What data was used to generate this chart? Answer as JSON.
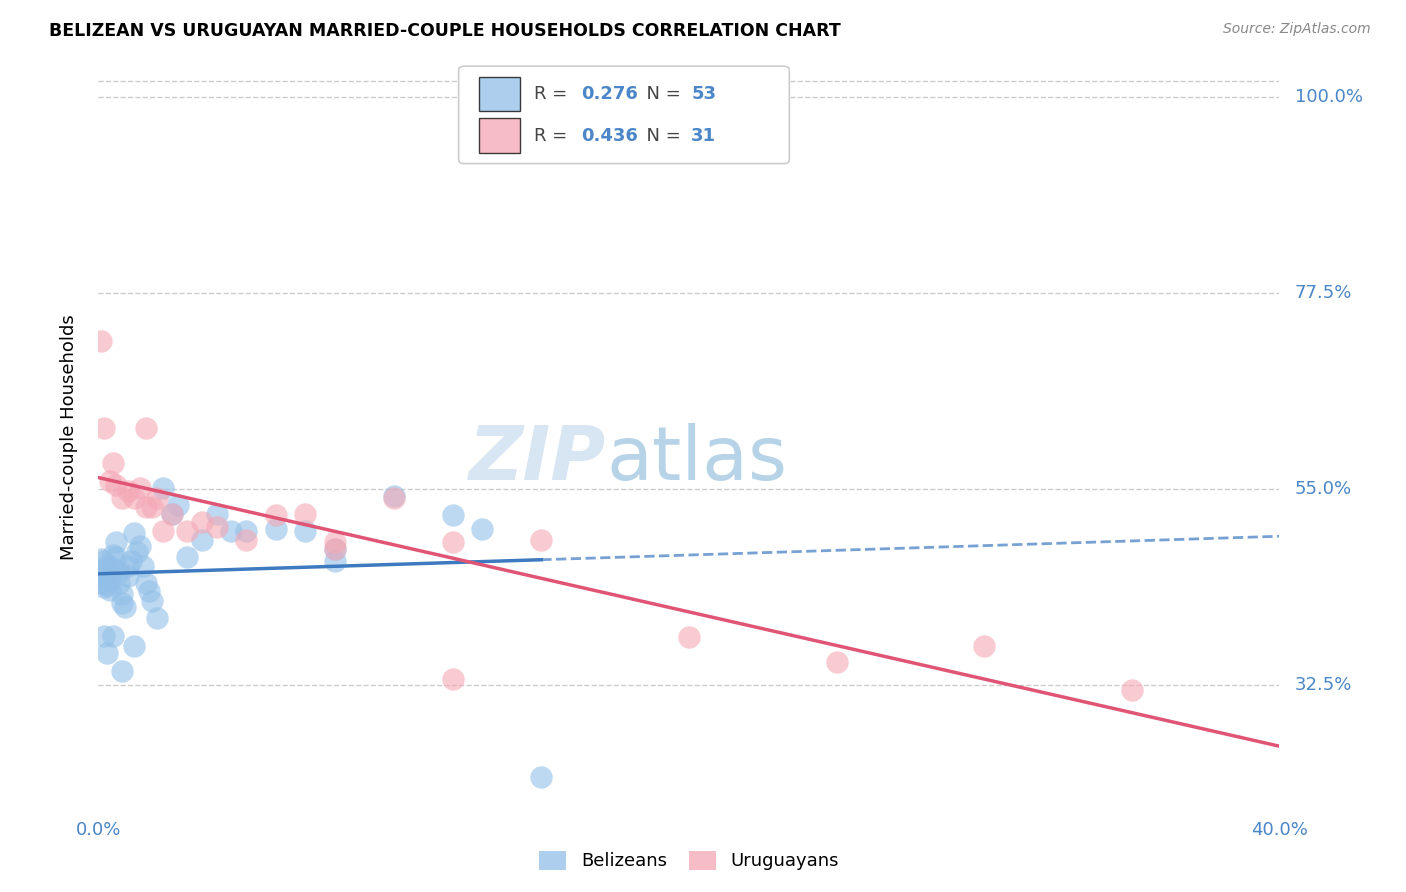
{
  "title": "BELIZEAN VS URUGUAYAN MARRIED-COUPLE HOUSEHOLDS CORRELATION CHART",
  "source": "Source: ZipAtlas.com",
  "ylabel": "Married-couple Households",
  "yticks_pct": [
    32.5,
    55.0,
    77.5,
    100.0
  ],
  "ytick_labels": [
    "32.5%",
    "55.0%",
    "77.5%",
    "100.0%"
  ],
  "xmin": 0.0,
  "xmax": 0.4,
  "ymin": 0.18,
  "ymax": 1.04,
  "belizean_color": "#92bfe8",
  "uruguayan_color": "#f4a7b4",
  "belizean_line_color": "#3d7abf",
  "uruguayan_line_color": "#e05575",
  "label_color": "#4a86c8",
  "belizean_R": 0.276,
  "belizean_N": 53,
  "uruguayan_R": 0.436,
  "uruguayan_N": 31,
  "belizean_x": [
    0.001,
    0.001,
    0.001,
    0.002,
    0.002,
    0.002,
    0.003,
    0.003,
    0.003,
    0.004,
    0.004,
    0.004,
    0.005,
    0.005,
    0.006,
    0.006,
    0.007,
    0.007,
    0.008,
    0.008,
    0.009,
    0.01,
    0.01,
    0.011,
    0.012,
    0.013,
    0.014,
    0.015,
    0.016,
    0.017,
    0.018,
    0.02,
    0.022,
    0.025,
    0.027,
    0.03,
    0.035,
    0.04,
    0.045,
    0.05,
    0.06,
    0.07,
    0.08,
    0.1,
    0.12,
    0.13,
    0.002,
    0.003,
    0.005,
    0.008,
    0.012,
    0.08,
    0.15
  ],
  "belizean_y": [
    0.47,
    0.458,
    0.443,
    0.468,
    0.451,
    0.438,
    0.462,
    0.45,
    0.44,
    0.455,
    0.445,
    0.435,
    0.475,
    0.46,
    0.49,
    0.472,
    0.455,
    0.443,
    0.43,
    0.42,
    0.415,
    0.462,
    0.45,
    0.468,
    0.5,
    0.478,
    0.485,
    0.462,
    0.442,
    0.433,
    0.422,
    0.402,
    0.552,
    0.522,
    0.532,
    0.472,
    0.492,
    0.522,
    0.502,
    0.502,
    0.505,
    0.502,
    0.468,
    0.542,
    0.52,
    0.505,
    0.382,
    0.362,
    0.382,
    0.342,
    0.37,
    0.482,
    0.22
  ],
  "uruguayan_x": [
    0.001,
    0.002,
    0.004,
    0.005,
    0.006,
    0.008,
    0.01,
    0.012,
    0.014,
    0.016,
    0.018,
    0.02,
    0.022,
    0.025,
    0.03,
    0.035,
    0.04,
    0.05,
    0.06,
    0.07,
    0.08,
    0.1,
    0.12,
    0.15,
    0.2,
    0.25,
    0.3,
    0.35,
    0.016,
    0.08,
    0.12
  ],
  "uruguayan_y": [
    0.72,
    0.62,
    0.56,
    0.58,
    0.555,
    0.54,
    0.548,
    0.54,
    0.552,
    0.53,
    0.53,
    0.54,
    0.502,
    0.522,
    0.502,
    0.512,
    0.507,
    0.492,
    0.52,
    0.522,
    0.482,
    0.54,
    0.49,
    0.492,
    0.38,
    0.352,
    0.37,
    0.32,
    0.62,
    0.49,
    0.332
  ]
}
